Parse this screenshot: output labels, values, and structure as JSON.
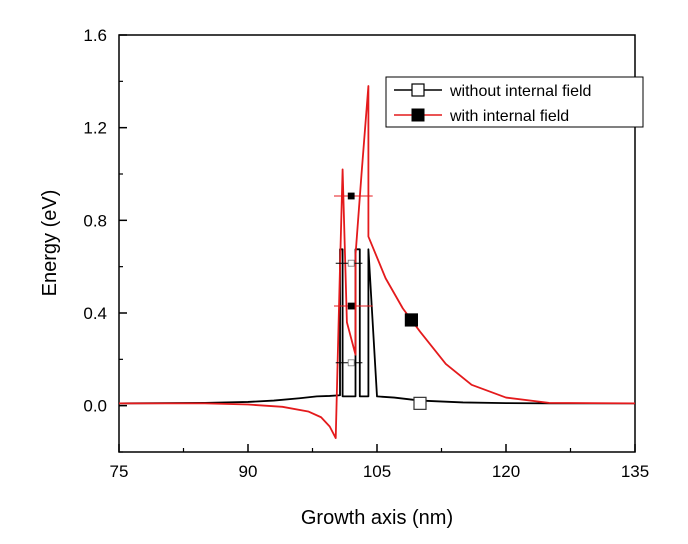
{
  "chart_data": {
    "type": "line",
    "title": "",
    "xlabel": "Growth axis (nm)",
    "ylabel": "Energy (eV)",
    "xlim": [
      75,
      135
    ],
    "ylim": [
      -0.2,
      1.6
    ],
    "xticks": [
      75,
      90,
      105,
      120,
      135
    ],
    "xtick_labels": [
      "75",
      "90",
      "105",
      "120",
      "135"
    ],
    "yticks": [
      0.0,
      0.4,
      0.8,
      1.2,
      1.6
    ],
    "ytick_labels": [
      "0.0",
      "0.4",
      "0.8",
      "1.2",
      "1.6"
    ],
    "grid": false,
    "legend_position": "top-right",
    "series": [
      {
        "name": "without internal field",
        "color": "#000000",
        "marker": "open-square",
        "x": [
          75,
          85,
          90,
          93,
          96,
          98,
          99.5,
          100.7,
          100.7,
          101,
          101,
          102.5,
          102.5,
          103,
          103,
          104,
          104,
          105,
          107,
          110,
          115,
          120,
          125,
          135
        ],
        "y": [
          0.01,
          0.012,
          0.016,
          0.022,
          0.032,
          0.04,
          0.042,
          0.045,
          0.675,
          0.675,
          0.04,
          0.04,
          0.675,
          0.675,
          0.04,
          0.04,
          0.675,
          0.04,
          0.035,
          0.022,
          0.014,
          0.011,
          0.01,
          0.01
        ],
        "marker_points": [
          [
            110,
            0.01
          ]
        ]
      },
      {
        "name": "with internal field",
        "color": "#e41a1c",
        "marker": "filled-square",
        "x": [
          75,
          85,
          90,
          94,
          97,
          98.5,
          99.5,
          100.2,
          100.7,
          101,
          101.5,
          102.5,
          102.5,
          103.2,
          104,
          104,
          106,
          108,
          110,
          113,
          116,
          120,
          125,
          135
        ],
        "y": [
          0.01,
          0.01,
          0.005,
          -0.005,
          -0.025,
          -0.05,
          -0.09,
          -0.14,
          0.6,
          1.02,
          0.36,
          0.22,
          0.65,
          1.0,
          1.38,
          0.73,
          0.55,
          0.42,
          0.32,
          0.18,
          0.09,
          0.035,
          0.012,
          0.01
        ],
        "marker_points": [
          [
            109,
            0.37
          ]
        ]
      }
    ],
    "energy_levels": [
      {
        "series": "without internal field",
        "y": 0.615,
        "x_range": [
          100.2,
          103.3
        ],
        "marker_x": 102,
        "marker": "open-square"
      },
      {
        "series": "without internal field",
        "y": 0.185,
        "x_range": [
          100.2,
          103.3
        ],
        "marker_x": 102,
        "marker": "open-square"
      },
      {
        "series": "with internal field",
        "y": 0.905,
        "x_range": [
          100,
          104.5
        ],
        "marker_x": 102,
        "marker": "filled-square"
      },
      {
        "series": "with internal field",
        "y": 0.43,
        "x_range": [
          100,
          104.5
        ],
        "marker_x": 102,
        "marker": "filled-square"
      }
    ]
  }
}
